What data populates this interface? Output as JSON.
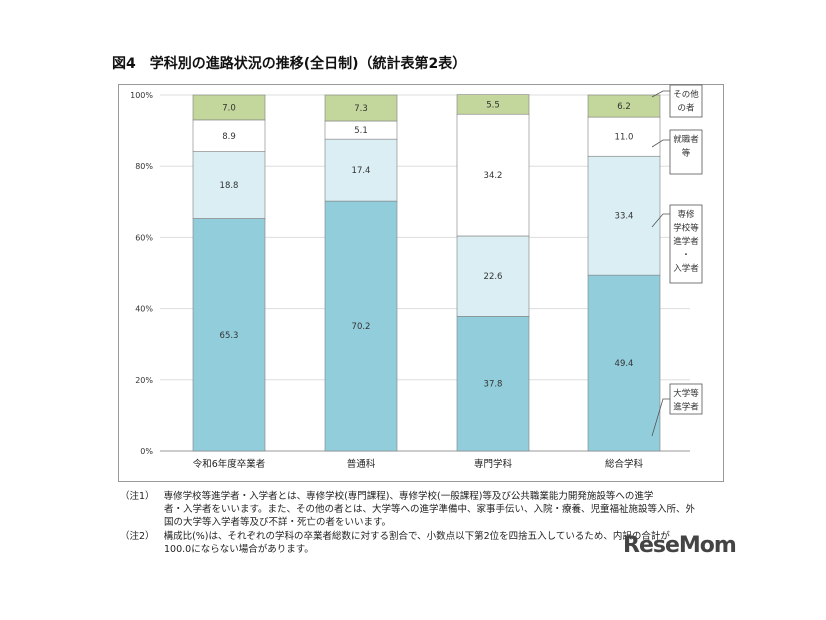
{
  "title": "図4　学科別の進路状況の推移(全日制)（統計表第2表）",
  "chart_data": {
    "type": "bar",
    "stacked": true,
    "categories": [
      "令和6年度卒業者",
      "普通科",
      "専門学科",
      "総合学科"
    ],
    "series": [
      {
        "name": "大学等進学者",
        "values": [
          65.3,
          70.2,
          37.8,
          49.4
        ],
        "color": "#92CDDC"
      },
      {
        "name": "専修学校等進学者・入学者",
        "values": [
          18.8,
          17.4,
          22.6,
          33.4
        ],
        "color": "#DAEEF3"
      },
      {
        "name": "就職者等",
        "values": [
          8.9,
          5.1,
          34.2,
          11.0
        ],
        "color": "#FFFFFF"
      },
      {
        "name": "その他の者",
        "values": [
          7.0,
          7.3,
          5.5,
          6.2
        ],
        "color": "#C3D69B"
      }
    ],
    "legend_labels": [
      [
        "大学等",
        "進学者"
      ],
      [
        "専修",
        "学校等",
        "進学者",
        "・",
        "入学者"
      ],
      [
        "就職者",
        "等"
      ],
      [
        "その他",
        "の者"
      ]
    ],
    "yticks": [
      "0%",
      "20%",
      "40%",
      "60%",
      "80%",
      "100%"
    ],
    "ylim": [
      0,
      100
    ],
    "grid": true,
    "legend": "right callouts"
  },
  "notes": [
    {
      "label": "（注1）",
      "lines": [
        "専修学校等進学者・入学者とは、専修学校(専門課程)、専修学校(一般課程)等及び公共職業能力開発施設等への進学",
        "者・入学者をいいます。また、その他の者とは、大学等への進学準備中、家事手伝い、入院・療養、児童福祉施設等入所、外",
        "国の大学等入学者等及び不詳・死亡の者をいいます。"
      ]
    },
    {
      "label": "（注2）",
      "lines": [
        "構成比(%)は、それぞれの学科の卒業者総数に対する割合で、小数点以下第2位を四捨五入しているため、内訳の合計が",
        "100.0にならない場合があります。"
      ]
    }
  ],
  "watermark": "ReseMom"
}
